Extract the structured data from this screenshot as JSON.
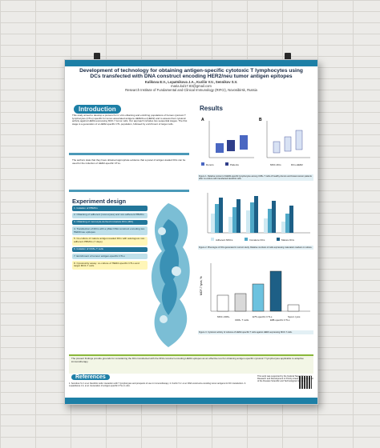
{
  "poster": {
    "title": "Development of technology for obtaining antigen-specific cytotoxic T lymphocytes using DCs transfected with DNA construct encoding HER2/neu tumor antigen epitopes",
    "authors": "Kulikova E.V., Lopatnikova J.A., Kurilin V.V., Sennikov S.V.",
    "email": "maria.kul17.83@gmail.com",
    "institute": "Research Institute of Fundamental and Clinical Immunology (RIFCI), Novosibirsk, Russia"
  },
  "introduction": {
    "heading": "Introduction",
    "text": "This study aimed to develop a protocol for in vitro obtaining and enriching populations of human cytotoxic T lymphocytes (CTLs) specific for tumor-associated antigens HER2/neu (HER2) and to assess their cytotoxic activity against HER2-expressing MCF-7 tumor cells. Our approach includes two sequential stages. The first stage is a generation of a HER2-specific CTL population, followed by enrichment of target cells."
  },
  "experiment": {
    "heading": "Experiment design",
    "steps": [
      "1. Isolation of PBMCs",
      "2. Obtaining of adherent (monocytes) and non-adherent PBMCs",
      "3. Obtaining of monocyte-derived immature DCs (iDC)",
      "4. Transfection of iDCs with a pMax DNA construct encoding two HER2/neu epitopes",
      "5. Co-culture of mature antigen-loaded DCs with autologous non-adherent PBMCs (7 days)",
      "6. Isolation of CD8+ T cells",
      "7. Enrichment of tumour antigen-specific CTLs",
      "8. Cytotoxicity assay: co-culture of HER2-specific CTLs and target MCF-7 cells"
    ],
    "summary": "The authors state that they have obtained appropriate evidence that a panel of antigen-loaded DCs can be used for the induction of HER2-specific CTLs."
  },
  "results": {
    "heading": "Results",
    "chart_a": {
      "panel": "A",
      "ylabel": "HER2-specific CTLs, %",
      "groups": [
        "Donors",
        "Patients"
      ]
    },
    "chart_b": {
      "panel": "B",
      "groups": [
        "MNC-DCs",
        "DCs-HER2"
      ]
    },
    "caption1": "Figure 1. Relative content of HER2-specific lymphocytes among CD8+ T cells of healthy donors and breast cancer patients after co-culture with transfected dendritic cells.",
    "caption2": "Figure 2. Phenotype of DCs generated in current study. Relative numbers of cells expressing maturation markers in culture.",
    "caption3": "Figure 3. Cytotoxic activity of cultures of HER2-specific T cells against HER2-expressing MCF-7 cells.",
    "chart_c_legend": [
      "Adherent MNCs",
      "Immature DCs",
      "Mature DCs"
    ],
    "chart_d_ylabel": "MCF-7 lysis, %",
    "chart_d_categories": [
      "MNC-CD8+",
      "CD8+ T cells",
      "E75-specific CTLs",
      "E88-specific CTLs",
      "Spont. lysis"
    ]
  },
  "conclusion": {
    "text": "The present findings provide grounds for considering the DCs transfected with the DNA construct encoding HER2 epitopes as an effective tool for obtaining antigen-specific cytotoxic T lymphocytes applicable to adoptive immunotherapy."
  },
  "references": {
    "heading": "References",
    "text": "1. Sennikov S.V. et al. Dendritic cells: interaction with T lymphocytes and prospects of use in immunotherapy. 2. Kurilin V.V. et al. DNA constructs encoding tumor antigens for DC transfection. 3. Lopatnikova J.A. et al. Generation of antigen-specific CTLs in vitro."
  },
  "acknowledgement": {
    "text": "This work was supported by the Federal Target Program for Research and Development in Priority Areas of Development of the Russian Scientific and Technological Complex."
  },
  "colors": {
    "brand": "#1d7fa6",
    "accent_light": "#bfe0ea",
    "donors": "#4a67c2",
    "patients": "#2f3e8a"
  }
}
